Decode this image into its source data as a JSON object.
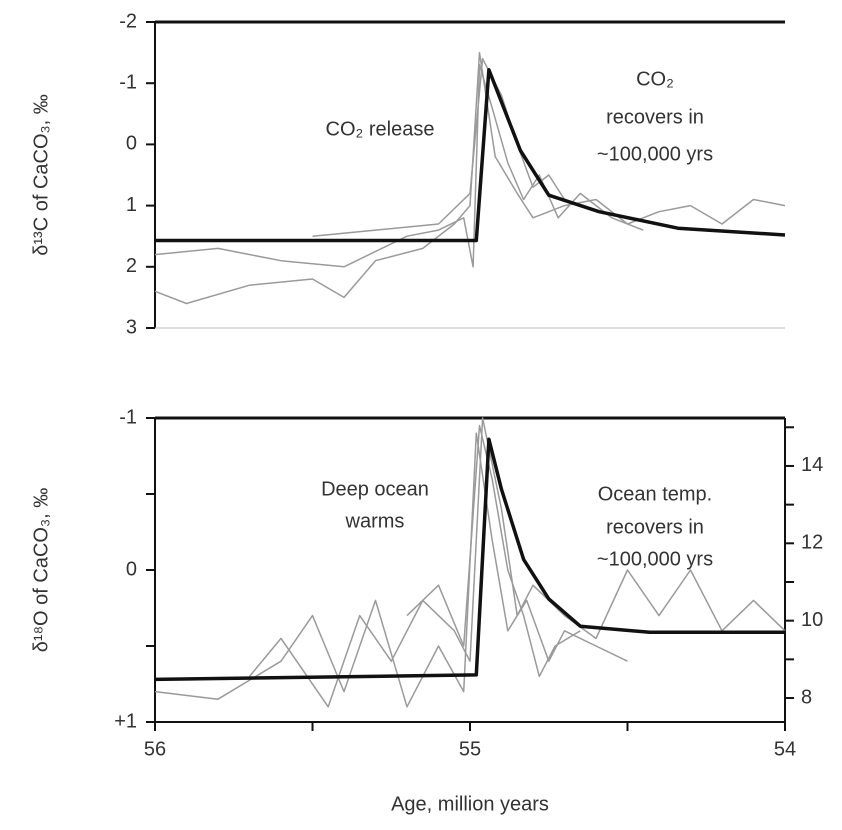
{
  "chart_data": [
    {
      "type": "line",
      "ylabel": "δ¹³C of CaCO₃, ‰",
      "annotations": [
        [
          "CO₂ release"
        ],
        [
          "CO₂",
          "recovers in",
          "~100,000 yrs"
        ]
      ],
      "xlim": [
        56,
        54
      ],
      "ylim": [
        -2,
        3
      ],
      "y_inverted": true,
      "yticks": [
        -2,
        -1,
        0,
        1,
        2,
        3
      ],
      "series": [
        {
          "color": "#9a9a9a",
          "x": [
            56,
            55.9,
            55.7,
            55.5,
            55.4,
            55.3,
            55.15,
            55.05,
            55.0,
            54.97,
            54.92,
            54.85,
            54.8,
            54.7,
            54.6,
            54.5,
            54.4,
            54.3,
            54.2,
            54.1,
            54
          ],
          "values": [
            2.4,
            2.6,
            2.3,
            2.2,
            2.5,
            1.9,
            1.7,
            1.3,
            1.0,
            -1.5,
            0.2,
            0.8,
            1.2,
            1.0,
            0.9,
            1.3,
            1.1,
            1.0,
            1.3,
            0.9,
            1.0
          ]
        },
        {
          "color": "#9a9a9a",
          "x": [
            56,
            55.8,
            55.6,
            55.4,
            55.2,
            55.1,
            55.02,
            54.99,
            54.97,
            54.93,
            54.88,
            54.83,
            54.78,
            54.72,
            54.65,
            54.55,
            54.45
          ],
          "values": [
            1.8,
            1.7,
            1.9,
            2.0,
            1.5,
            1.4,
            1.2,
            2.0,
            -1.3,
            -0.6,
            0.3,
            0.9,
            0.5,
            1.2,
            0.8,
            1.2,
            1.4
          ]
        },
        {
          "color": "#9a9a9a",
          "x": [
            55.5,
            55.3,
            55.1,
            55.0,
            54.96,
            54.9,
            54.85,
            54.8,
            54.75,
            54.7
          ],
          "values": [
            1.5,
            1.4,
            1.3,
            0.8,
            -1.4,
            -0.8,
            0,
            0.7,
            0.5,
            0.9
          ]
        },
        {
          "color": "#111111",
          "x": [
            56,
            54.98,
            54.94,
            54.84,
            54.75,
            54.59,
            54.34,
            54
          ],
          "values": [
            1.57,
            1.57,
            -1.22,
            0.1,
            0.83,
            1.1,
            1.37,
            1.48
          ]
        }
      ]
    },
    {
      "type": "line",
      "ylabel": "δ¹⁸O of CaCO₃, ‰",
      "xlabel": "Age, million years",
      "annotations": [
        [
          "Deep ocean",
          "warms"
        ],
        [
          "Ocean temp.",
          "recovers in",
          "~100,000 yrs"
        ]
      ],
      "xlim": [
        56,
        54
      ],
      "xticks": [
        56,
        55,
        54
      ],
      "xminor": [
        55.5,
        54.5
      ],
      "ylim": [
        -1,
        1
      ],
      "y_inverted": true,
      "yticks": [
        -1,
        0,
        {
          "value": 1,
          "label": "+1"
        }
      ],
      "yminor": [
        -0.5,
        0.5
      ],
      "y2lim": [
        7.38,
        15.24
      ],
      "y2ticks": [
        8,
        10,
        12,
        14
      ],
      "y2minor": [
        9,
        11,
        13,
        15
      ],
      "series": [
        {
          "color": "#9a9a9a",
          "x": [
            56,
            55.8,
            55.6,
            55.5,
            55.4,
            55.3,
            55.2,
            55.1,
            55.02,
            54.98,
            54.93,
            54.88,
            54.82,
            54.75,
            54.7,
            54.6,
            54.5
          ],
          "values": [
            0.8,
            0.85,
            0.6,
            0.3,
            0.8,
            0.2,
            0.9,
            0.5,
            0.8,
            -0.9,
            -0.2,
            0.4,
            0.2,
            0.6,
            0.4,
            0.5,
            0.6
          ]
        },
        {
          "color": "#9a9a9a",
          "x": [
            55.7,
            55.6,
            55.45,
            55.35,
            55.25,
            55.15,
            55.05,
            55.0,
            54.96,
            54.9,
            54.85,
            54.8,
            54.7,
            54.6,
            54.5,
            54.4,
            54.3,
            54.2,
            54.1,
            54
          ],
          "values": [
            0.7,
            0.45,
            0.9,
            0.3,
            0.6,
            0.2,
            0.4,
            0.6,
            -1.0,
            -0.4,
            0.3,
            0.1,
            0.3,
            0.45,
            0.0,
            0.3,
            0.0,
            0.4,
            0.2,
            0.4
          ]
        },
        {
          "color": "#9a9a9a",
          "x": [
            55.2,
            55.1,
            55.02,
            54.97,
            54.93,
            54.88,
            54.83,
            54.78,
            54.73,
            54.65
          ],
          "values": [
            0.3,
            0.1,
            0.5,
            -0.95,
            -0.6,
            0,
            0.3,
            0.7,
            0.5,
            0.4
          ]
        },
        {
          "color": "#111111",
          "x": [
            56,
            54.98,
            54.94,
            54.9,
            54.83,
            54.75,
            54.65,
            54.43,
            54
          ],
          "values": [
            0.72,
            0.69,
            -0.86,
            -0.53,
            -0.07,
            0.19,
            0.37,
            0.41,
            0.41
          ]
        }
      ]
    }
  ]
}
